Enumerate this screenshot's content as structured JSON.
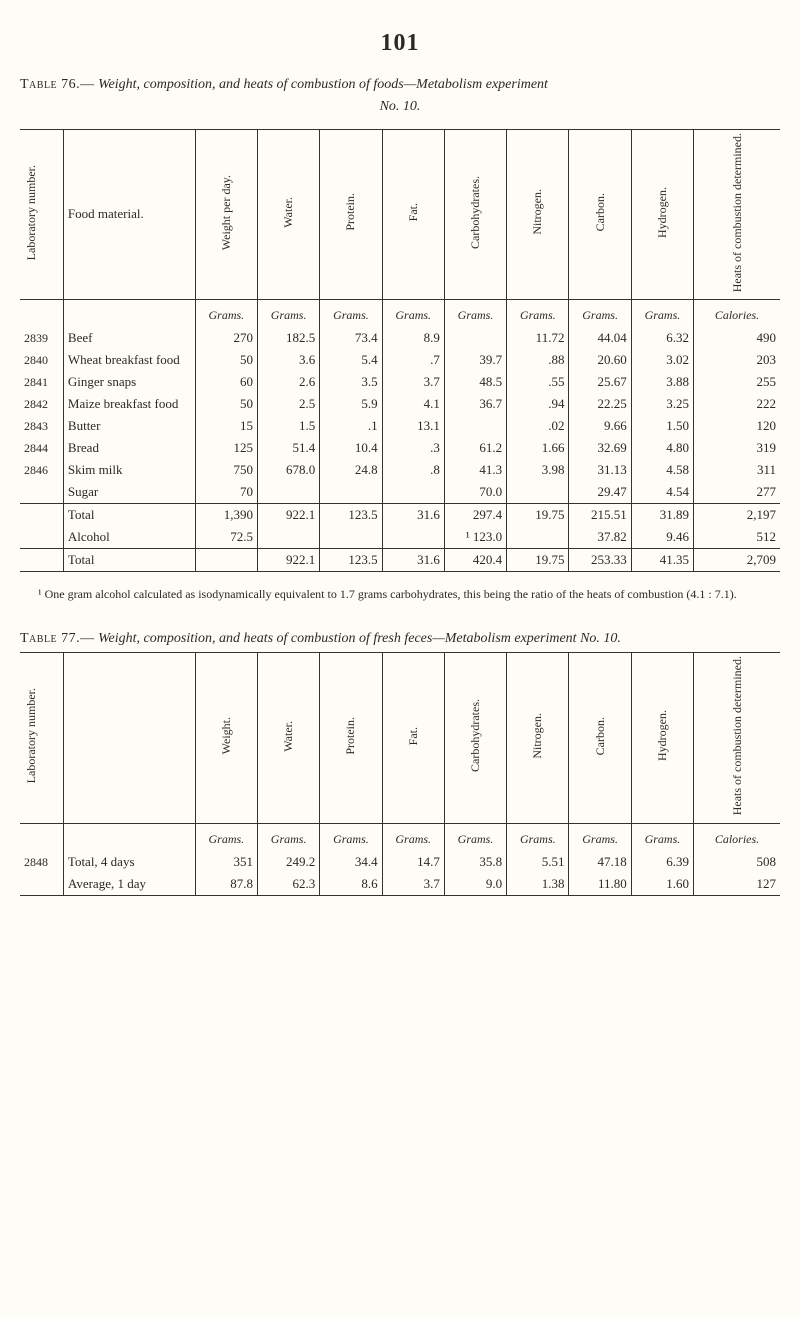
{
  "page_number": "101",
  "table76": {
    "caption_prefix": "Table 76.—",
    "caption_italic": "Weight, composition, and heats of combustion of foods—Metabolism experiment",
    "exp_no": "No. 10.",
    "headers": {
      "lab": "Laboratory number.",
      "food": "Food material.",
      "weight": "Weight per day.",
      "water": "Water.",
      "protein": "Protein.",
      "fat": "Fat.",
      "carbo": "Carbohydrates.",
      "nitrogen": "Nitrogen.",
      "carbon": "Carbon.",
      "hydrogen": "Hydrogen.",
      "heats": "Heats of combustion determined."
    },
    "units": {
      "grams": "Grams.",
      "calories": "Calories."
    },
    "rows": [
      {
        "lab": "2839",
        "food": "Beef",
        "weight": "270",
        "water": "182.5",
        "protein": "73.4",
        "fat": "8.9",
        "carbo": "",
        "nitrogen": "11.72",
        "carbon": "44.04",
        "hydrogen": "6.32",
        "cal": "490"
      },
      {
        "lab": "2840",
        "food": "Wheat breakfast food",
        "weight": "50",
        "water": "3.6",
        "protein": "5.4",
        "fat": ".7",
        "carbo": "39.7",
        "nitrogen": ".88",
        "carbon": "20.60",
        "hydrogen": "3.02",
        "cal": "203"
      },
      {
        "lab": "2841",
        "food": "Ginger snaps",
        "weight": "60",
        "water": "2.6",
        "protein": "3.5",
        "fat": "3.7",
        "carbo": "48.5",
        "nitrogen": ".55",
        "carbon": "25.67",
        "hydrogen": "3.88",
        "cal": "255"
      },
      {
        "lab": "2842",
        "food": "Maize breakfast food",
        "weight": "50",
        "water": "2.5",
        "protein": "5.9",
        "fat": "4.1",
        "carbo": "36.7",
        "nitrogen": ".94",
        "carbon": "22.25",
        "hydrogen": "3.25",
        "cal": "222"
      },
      {
        "lab": "2843",
        "food": "Butter",
        "weight": "15",
        "water": "1.5",
        "protein": ".1",
        "fat": "13.1",
        "carbo": "",
        "nitrogen": ".02",
        "carbon": "9.66",
        "hydrogen": "1.50",
        "cal": "120"
      },
      {
        "lab": "2844",
        "food": "Bread",
        "weight": "125",
        "water": "51.4",
        "protein": "10.4",
        "fat": ".3",
        "carbo": "61.2",
        "nitrogen": "1.66",
        "carbon": "32.69",
        "hydrogen": "4.80",
        "cal": "319"
      },
      {
        "lab": "2846",
        "food": "Skim milk",
        "weight": "750",
        "water": "678.0",
        "protein": "24.8",
        "fat": ".8",
        "carbo": "41.3",
        "nitrogen": "3.98",
        "carbon": "31.13",
        "hydrogen": "4.58",
        "cal": "311"
      },
      {
        "lab": "",
        "food": "Sugar",
        "weight": "70",
        "water": "",
        "protein": "",
        "fat": "",
        "carbo": "70.0",
        "nitrogen": "",
        "carbon": "29.47",
        "hydrogen": "4.54",
        "cal": "277"
      }
    ],
    "subtotal": {
      "food": "Total",
      "weight": "1,390",
      "water": "922.1",
      "protein": "123.5",
      "fat": "31.6",
      "carbo": "297.4",
      "nitrogen": "19.75",
      "carbon": "215.51",
      "hydrogen": "31.89",
      "cal": "2,197"
    },
    "alcohol": {
      "food": "Alcohol",
      "weight": "72.5",
      "water": "",
      "protein": "",
      "fat": "",
      "carbo": "¹ 123.0",
      "nitrogen": "",
      "carbon": "37.82",
      "hydrogen": "9.46",
      "cal": "512"
    },
    "grand": {
      "food": "Total",
      "weight": "",
      "water": "922.1",
      "protein": "123.5",
      "fat": "31.6",
      "carbo": "420.4",
      "nitrogen": "19.75",
      "carbon": "253.33",
      "hydrogen": "41.35",
      "cal": "2,709"
    },
    "footnote": "¹ One gram alcohol calculated as isodynamically equivalent to 1.7 grams carbohydrates, this being the ratio of the heats of combustion (4.1 : 7.1)."
  },
  "table77": {
    "caption_prefix": "Table 77.—",
    "caption_italic": "Weight, composition, and heats of combustion of fresh feces—Metabolism experiment No. 10.",
    "headers": {
      "lab": "Laboratory number.",
      "food": "",
      "weight": "Weight.",
      "water": "Water.",
      "protein": "Protein.",
      "fat": "Fat.",
      "carbo": "Carbohydrates.",
      "nitrogen": "Nitrogen.",
      "carbon": "Carbon.",
      "hydrogen": "Hydrogen.",
      "heats": "Heats of combustion determined."
    },
    "rows": [
      {
        "lab": "2848",
        "food": "Total, 4 days",
        "weight": "351",
        "water": "249.2",
        "protein": "34.4",
        "fat": "14.7",
        "carbo": "35.8",
        "nitrogen": "5.51",
        "carbon": "47.18",
        "hydrogen": "6.39",
        "cal": "508"
      },
      {
        "lab": "",
        "food": "Average, 1 day",
        "weight": "87.8",
        "water": "62.3",
        "protein": "8.6",
        "fat": "3.7",
        "carbo": "9.0",
        "nitrogen": "1.38",
        "carbon": "11.80",
        "hydrogen": "1.60",
        "cal": "127"
      }
    ]
  }
}
